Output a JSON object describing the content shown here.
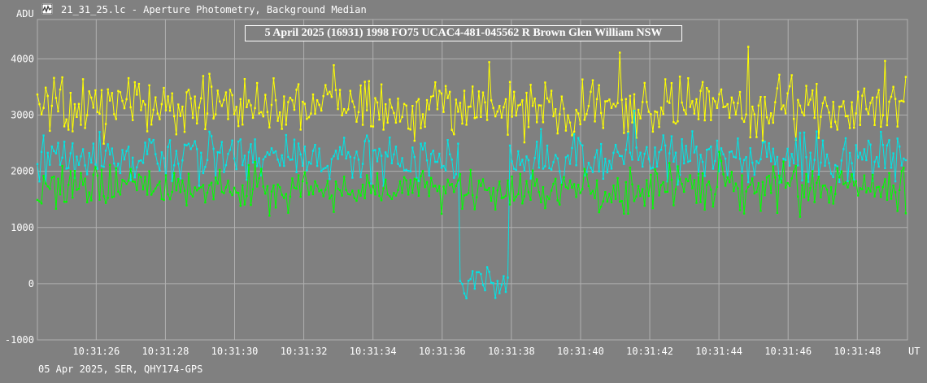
{
  "window": {
    "title": "21_31_25.lc - Aperture Photometry, Background Median",
    "icon": "lightcurve-app-icon"
  },
  "footer": {
    "text": "05 Apr 2025, SER, QHY174-GPS"
  },
  "colors": {
    "background": "#808080",
    "grid": "#b0b0b0",
    "target": "#00ff00",
    "comparison": "#ffff00",
    "ratio": "#00e5e5"
  },
  "chart_data": {
    "type": "line",
    "title": "5 April 2025 (16931) 1998 FO75 UCAC4-481-045562 R Brown Glen William NSW",
    "ylabel": "ADU",
    "xlabel": "UT",
    "ylim": [
      -1000,
      4700
    ],
    "xlim": [
      24.3,
      49.45
    ],
    "yticks": [
      4000,
      3000,
      2000,
      1000,
      0,
      -1000
    ],
    "xticks": [
      {
        "value": 26,
        "label": "10:31:26"
      },
      {
        "value": 28,
        "label": "10:31:28"
      },
      {
        "value": 30,
        "label": "10:31:30"
      },
      {
        "value": 32,
        "label": "10:31:32"
      },
      {
        "value": 34,
        "label": "10:31:34"
      },
      {
        "value": 36,
        "label": "10:31:36"
      },
      {
        "value": 38,
        "label": "10:31:38"
      },
      {
        "value": 40,
        "label": "10:31:40"
      },
      {
        "value": 42,
        "label": "10:31:42"
      },
      {
        "value": 44,
        "label": "10:31:44"
      },
      {
        "value": 46,
        "label": "10:31:46"
      },
      {
        "value": 48,
        "label": "10:31:48"
      }
    ],
    "grid": true,
    "x_start": 24.3,
    "x_end": 49.4,
    "event": {
      "start": 36.5,
      "end": 37.95
    },
    "series": [
      {
        "color_key": "comparison",
        "level": 3150,
        "noise": 420,
        "event_drop": 0
      },
      {
        "color_key": "ratio",
        "level": 2250,
        "noise": 380,
        "event_drop": 2300
      },
      {
        "color_key": "target",
        "level": 1700,
        "noise": 330,
        "event_drop": 0
      }
    ]
  }
}
